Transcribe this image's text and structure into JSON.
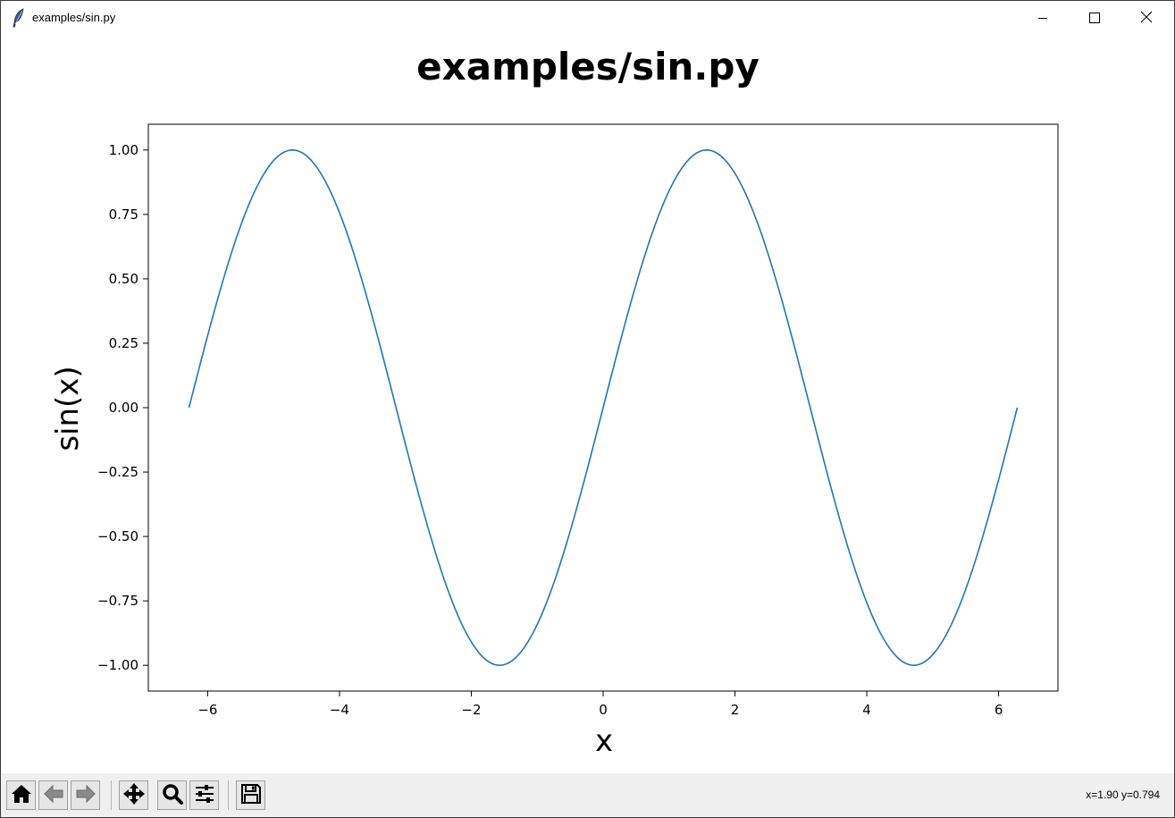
{
  "window": {
    "title": "examples/sin.py",
    "icon": "feather-icon",
    "controls": [
      "minimize-icon",
      "maximize-icon",
      "close-icon"
    ]
  },
  "toolbar": {
    "buttons": [
      "home-icon",
      "back-icon",
      "forward-icon",
      "pan-icon",
      "zoom-icon",
      "configure-subplots-icon",
      "save-icon"
    ],
    "coords": "x=1.90 y=0.794"
  },
  "chart_data": {
    "type": "line",
    "title": "examples/sin.py",
    "xlabel": "x",
    "ylabel": "sin(x)",
    "function": "sin(x)",
    "x_range": [
      -6.2832,
      6.2832
    ],
    "xlim": [
      -6.9,
      6.9
    ],
    "ylim": [
      -1.1,
      1.1
    ],
    "xticks": [
      -6,
      -4,
      -2,
      0,
      2,
      4,
      6
    ],
    "xtick_labels": [
      "−6",
      "−4",
      "−2",
      "0",
      "2",
      "4",
      "6"
    ],
    "yticks": [
      1.0,
      0.75,
      0.5,
      0.25,
      0.0,
      -0.25,
      -0.5,
      -0.75,
      -1.0
    ],
    "ytick_labels": [
      "1.00",
      "0.75",
      "0.50",
      "0.25",
      "0.00",
      "−0.25",
      "−0.50",
      "−0.75",
      "−1.00"
    ],
    "series": [
      {
        "color": "#1f77b4",
        "x": [
          -6.2832,
          -5.8905,
          -5.4978,
          -5.1051,
          -4.7124,
          -4.3197,
          -3.927,
          -3.5343,
          -3.1416,
          -2.7489,
          -2.3562,
          -1.9635,
          -1.5708,
          -1.1781,
          -0.7854,
          -0.3927,
          0.0,
          0.3927,
          0.7854,
          1.1781,
          1.5708,
          1.9635,
          2.3562,
          2.7489,
          3.1416,
          3.5343,
          3.927,
          4.3197,
          4.7124,
          5.1051,
          5.4978,
          5.8905,
          6.2832
        ],
        "y": [
          0.0,
          0.383,
          0.707,
          0.924,
          1.0,
          0.924,
          0.707,
          0.383,
          0.0,
          -0.383,
          -0.707,
          -0.924,
          -1.0,
          -0.924,
          -0.707,
          -0.383,
          0.0,
          0.383,
          0.707,
          0.924,
          1.0,
          0.924,
          0.707,
          0.383,
          0.0,
          -0.383,
          -0.707,
          -0.924,
          -1.0,
          -0.924,
          -0.707,
          -0.383,
          0.0
        ]
      }
    ],
    "grid": false,
    "legend": "none"
  }
}
